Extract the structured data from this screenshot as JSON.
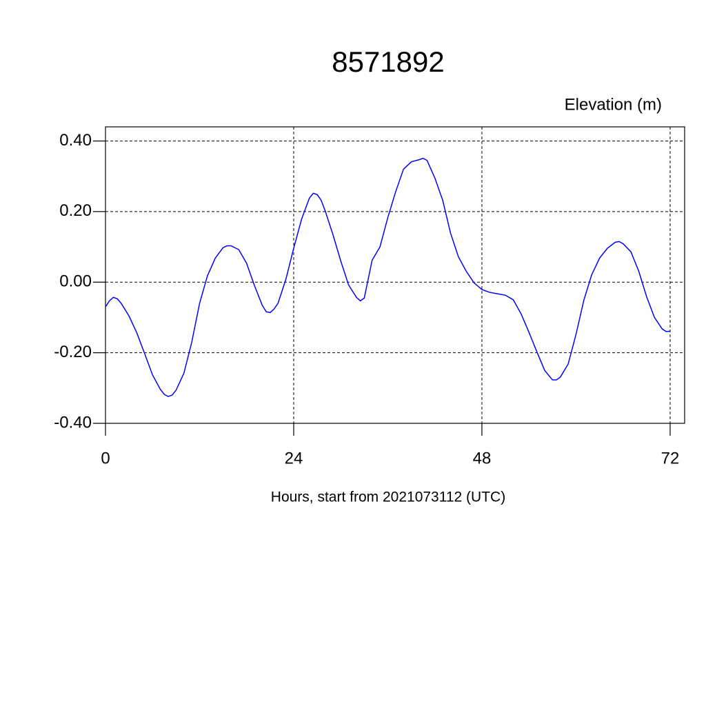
{
  "chart_data": {
    "type": "line",
    "title": "8571892",
    "ylabel": "Elevation (m)",
    "xlabel": "Hours, start from 2021073112 (UTC)",
    "x": [
      0,
      0.5,
      1,
      1.5,
      2,
      3,
      4,
      5,
      6,
      7,
      7.5,
      8,
      8.5,
      9,
      10,
      11,
      12,
      13,
      14,
      15,
      15.5,
      16,
      17,
      18,
      19,
      20,
      20.5,
      21,
      21.5,
      22,
      23,
      24,
      25,
      26,
      26.5,
      27,
      27.5,
      28,
      29,
      30,
      31,
      32,
      32.5,
      33,
      34,
      35,
      36,
      37,
      38,
      39,
      40,
      40.5,
      41,
      42,
      43,
      44,
      45,
      46,
      47,
      48,
      49,
      50,
      51,
      52,
      53,
      54,
      55,
      56,
      57,
      57.5,
      58,
      59,
      60,
      61,
      62,
      63,
      64,
      65,
      65.5,
      66,
      67,
      68,
      69,
      70,
      71,
      71.5,
      72
    ],
    "series": [
      {
        "name": "Elevation",
        "color": "#0000ff",
        "values": [
          -0.07,
          -0.053,
          -0.043,
          -0.047,
          -0.06,
          -0.096,
          -0.144,
          -0.203,
          -0.263,
          -0.304,
          -0.318,
          -0.324,
          -0.32,
          -0.306,
          -0.258,
          -0.17,
          -0.06,
          0.018,
          0.068,
          0.098,
          0.103,
          0.103,
          0.092,
          0.053,
          -0.01,
          -0.066,
          -0.084,
          -0.086,
          -0.076,
          -0.06,
          0.008,
          0.096,
          0.178,
          0.238,
          0.252,
          0.248,
          0.232,
          0.203,
          0.135,
          0.06,
          -0.008,
          -0.043,
          -0.053,
          -0.045,
          0.062,
          0.1,
          0.183,
          0.256,
          0.32,
          0.341,
          0.347,
          0.351,
          0.345,
          0.295,
          0.232,
          0.139,
          0.072,
          0.031,
          -0.002,
          -0.021,
          -0.029,
          -0.033,
          -0.037,
          -0.05,
          -0.09,
          -0.142,
          -0.197,
          -0.25,
          -0.277,
          -0.277,
          -0.269,
          -0.232,
          -0.148,
          -0.051,
          0.021,
          0.068,
          0.096,
          0.113,
          0.115,
          0.109,
          0.086,
          0.031,
          -0.041,
          -0.1,
          -0.133,
          -0.14,
          -0.139
        ]
      }
    ],
    "xlim": [
      0,
      73.85
    ],
    "ylim": [
      -0.4,
      0.44
    ],
    "xticks": [
      0,
      24,
      48,
      72
    ],
    "yticks": [
      {
        "value": -0.4,
        "label": "-0.40"
      },
      {
        "value": -0.2,
        "label": "-0.20"
      },
      {
        "value": 0,
        "label": "0.00"
      },
      {
        "value": 0.2,
        "label": "0.20"
      },
      {
        "value": 0.4,
        "label": "0.40"
      }
    ],
    "grid": true
  }
}
